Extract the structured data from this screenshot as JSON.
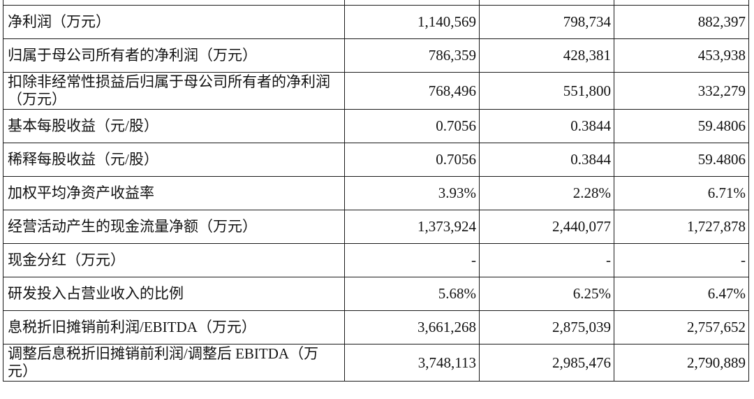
{
  "table": {
    "rows": [
      {
        "label": "净利润（万元）",
        "v1": "1,140,569",
        "v2": "798,734",
        "v3": "882,397"
      },
      {
        "label": "归属于母公司所有者的净利润（万元）",
        "v1": "786,359",
        "v2": "428,381",
        "v3": "453,938"
      },
      {
        "label": "扣除非经常性损益后归属于母公司所有者的净利润（万元）",
        "v1": "768,496",
        "v2": "551,800",
        "v3": "332,279"
      },
      {
        "label": "基本每股收益（元/股）",
        "v1": "0.7056",
        "v2": "0.3844",
        "v3": "59.4806"
      },
      {
        "label": "稀释每股收益（元/股）",
        "v1": "0.7056",
        "v2": "0.3844",
        "v3": "59.4806"
      },
      {
        "label": "加权平均净资产收益率",
        "v1": "3.93%",
        "v2": "2.28%",
        "v3": "6.71%"
      },
      {
        "label": "经营活动产生的现金流量净额（万元）",
        "v1": "1,373,924",
        "v2": "2,440,077",
        "v3": "1,727,878"
      },
      {
        "label": "现金分红（万元）",
        "v1": "-",
        "v2": "-",
        "v3": "-"
      },
      {
        "label": "研发投入占营业收入的比例",
        "v1": "5.68%",
        "v2": "6.25%",
        "v3": "6.47%"
      },
      {
        "label": "息税折旧摊销前利润/EBITDA（万元）",
        "v1": "3,661,268",
        "v2": "2,875,039",
        "v3": "2,757,652"
      },
      {
        "label": "调整后息税折旧摊销前利润/调整后 EBITDA（万元）",
        "v1": "3,748,113",
        "v2": "2,985,476",
        "v3": "2,790,889"
      }
    ]
  }
}
